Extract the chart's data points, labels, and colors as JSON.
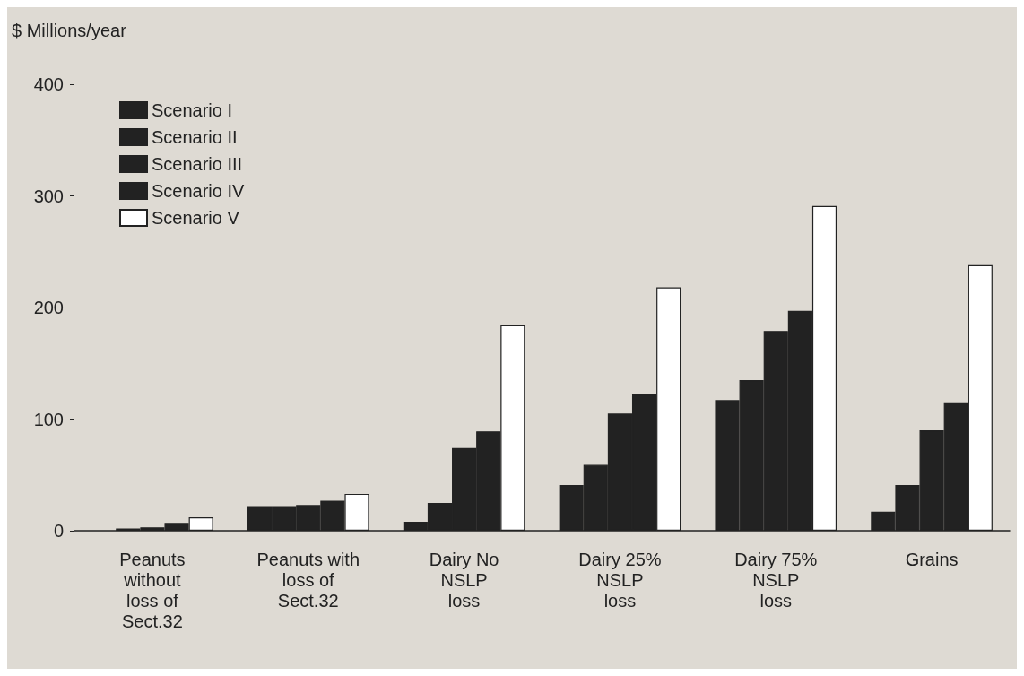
{
  "chart_data": {
    "type": "bar",
    "ylabel": "$ Millions/year",
    "categories": [
      "Peanuts\nwithout\nloss of\nSect.32",
      "Peanuts with\nloss of\nSect.32",
      "Dairy No\nNSLP\nloss",
      "Dairy 25%\nNSLP\nloss",
      "Dairy 75%\nNSLP\nloss",
      "Grains"
    ],
    "series": [
      {
        "name": "Scenario I",
        "color": "#222222",
        "values": [
          null,
          22,
          8,
          41,
          117,
          17
        ]
      },
      {
        "name": "Scenario II",
        "color": "#222222",
        "values": [
          2,
          22,
          25,
          59,
          135,
          41
        ]
      },
      {
        "name": "Scenario III",
        "color": "#222222",
        "values": [
          3,
          23,
          74,
          105,
          179,
          90
        ]
      },
      {
        "name": "Scenario IV",
        "color": "#222222",
        "values": [
          7,
          27,
          89,
          122,
          197,
          115
        ]
      },
      {
        "name": "Scenario V",
        "color": "#ffffff",
        "values": [
          12,
          33,
          184,
          218,
          291,
          238
        ]
      }
    ],
    "ylim": [
      0,
      400
    ],
    "yticks": [
      0,
      100,
      200,
      300,
      400
    ],
    "grid": false,
    "legend": "top left"
  }
}
